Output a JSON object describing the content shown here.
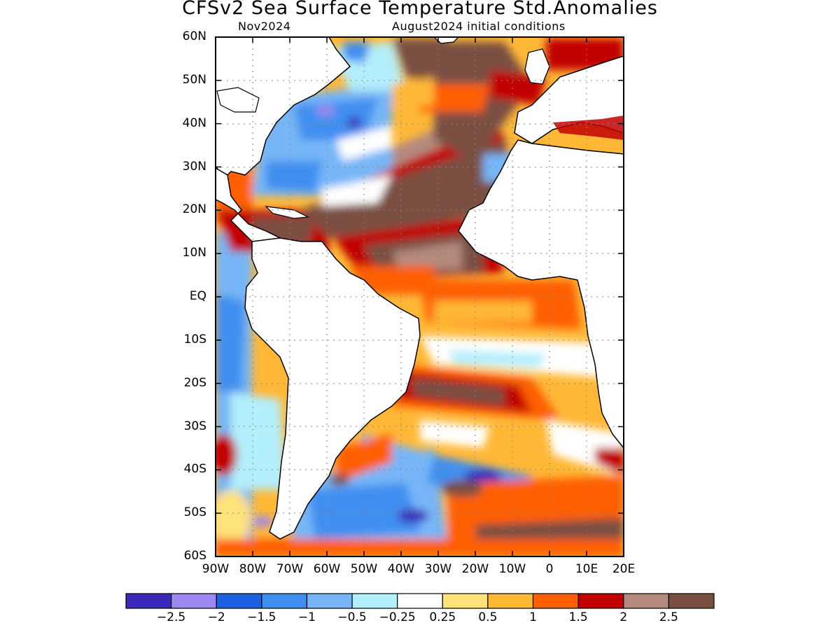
{
  "title": "CFSv2 Sea Surface Temperature Std.Anomalies",
  "subtitle_left": "Nov2024",
  "subtitle_right": "August2024 initial conditions",
  "lat_labels": [
    "60N",
    "50N",
    "40N",
    "30N",
    "20N",
    "10N",
    "EQ",
    "10S",
    "20S",
    "30S",
    "40S",
    "50S",
    "60S"
  ],
  "lon_labels": [
    "90W",
    "80W",
    "70W",
    "60W",
    "50W",
    "40W",
    "30W",
    "20W",
    "10W",
    "0",
    "10E",
    "20E"
  ],
  "colorbar": {
    "colors": [
      "#3b2ab9",
      "#9d88f3",
      "#1e61e0",
      "#3f8ff0",
      "#76b6f7",
      "#b3eefb",
      "#ffffff",
      "#fee27a",
      "#ffb835",
      "#ff5f00",
      "#c10000",
      "#b58a7e",
      "#7a4f42"
    ],
    "labels": [
      "−2.5",
      "−2",
      "−1.5",
      "−1",
      "−0.5",
      "−0.25",
      "0.25",
      "0.5",
      "1",
      "1.5",
      "2",
      "2.5"
    ]
  }
}
